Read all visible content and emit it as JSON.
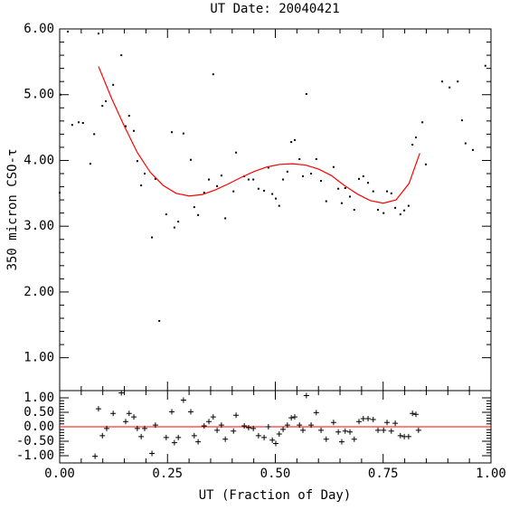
{
  "chart_data": [
    {
      "type": "scatter",
      "title": "UT Date: 20040421",
      "y_label": "350 micron CSO-τ",
      "color": "#000000",
      "x": [
        0.0,
        0.002,
        0.019,
        0.029,
        0.044,
        0.054,
        0.071,
        0.08,
        0.09,
        0.099,
        0.107,
        0.124,
        0.143,
        0.153,
        0.161,
        0.172,
        0.18,
        0.189,
        0.197,
        0.214,
        0.222,
        0.231,
        0.247,
        0.26,
        0.266,
        0.275,
        0.287,
        0.304,
        0.312,
        0.321,
        0.335,
        0.346,
        0.356,
        0.365,
        0.375,
        0.384,
        0.403,
        0.409,
        0.428,
        0.438,
        0.449,
        0.461,
        0.474,
        0.484,
        0.493,
        0.501,
        0.509,
        0.518,
        0.528,
        0.537,
        0.545,
        0.556,
        0.564,
        0.572,
        0.583,
        0.595,
        0.606,
        0.618,
        0.635,
        0.646,
        0.654,
        0.662,
        0.673,
        0.683,
        0.694,
        0.704,
        0.715,
        0.727,
        0.738,
        0.751,
        0.759,
        0.769,
        0.778,
        0.79,
        0.799,
        0.809,
        0.818,
        0.826,
        0.841,
        0.849,
        0.887,
        0.904,
        0.923,
        0.933,
        0.941,
        0.958,
        0.987
      ],
      "values": [
        3.51,
        5.0,
        5.96,
        4.54,
        4.58,
        4.57,
        3.95,
        4.4,
        5.93,
        4.83,
        4.9,
        5.15,
        5.6,
        4.52,
        4.68,
        4.45,
        3.99,
        3.62,
        3.8,
        2.83,
        3.72,
        1.56,
        3.18,
        4.43,
        2.98,
        3.07,
        4.41,
        4.01,
        3.29,
        3.17,
        3.51,
        3.71,
        5.31,
        3.61,
        3.77,
        3.12,
        3.53,
        4.12,
        3.76,
        3.71,
        3.71,
        3.57,
        3.54,
        3.89,
        3.49,
        3.42,
        3.31,
        3.71,
        3.83,
        4.28,
        4.31,
        4.02,
        3.76,
        5.01,
        3.8,
        4.02,
        3.69,
        3.38,
        3.9,
        3.57,
        3.35,
        3.58,
        3.45,
        3.25,
        3.72,
        3.76,
        3.66,
        3.53,
        3.25,
        3.2,
        3.53,
        3.5,
        3.28,
        3.18,
        3.24,
        3.31,
        4.24,
        4.35,
        4.58,
        3.94,
        5.2,
        5.11,
        5.2,
        4.61,
        4.26,
        4.16,
        5.44
      ],
      "fit": {
        "color": "#ff0000",
        "x": [
          0.09,
          0.12,
          0.15,
          0.18,
          0.21,
          0.24,
          0.27,
          0.3,
          0.33,
          0.36,
          0.39,
          0.42,
          0.45,
          0.48,
          0.51,
          0.54,
          0.57,
          0.6,
          0.63,
          0.66,
          0.69,
          0.72,
          0.75,
          0.78,
          0.81,
          0.835
        ],
        "values": [
          5.43,
          4.95,
          4.52,
          4.12,
          3.82,
          3.62,
          3.5,
          3.46,
          3.48,
          3.55,
          3.64,
          3.74,
          3.83,
          3.9,
          3.94,
          3.95,
          3.93,
          3.87,
          3.77,
          3.62,
          3.49,
          3.39,
          3.35,
          3.4,
          3.65,
          4.11
        ]
      },
      "xlim": [
        0,
        1
      ],
      "ylim": [
        0.5,
        6.0
      ],
      "yticks": [
        {
          "value": 1,
          "label": "1.00"
        },
        {
          "value": 2,
          "label": "2.00"
        },
        {
          "value": 3,
          "label": "3.00"
        },
        {
          "value": 4,
          "label": "4.00"
        },
        {
          "value": 5,
          "label": "5.00"
        },
        {
          "value": 6,
          "label": "6.00"
        }
      ]
    },
    {
      "type": "residual",
      "x_label": "UT (Fraction of Day)",
      "color": "#000000",
      "x": [
        0.082,
        0.09,
        0.099,
        0.109,
        0.124,
        0.143,
        0.153,
        0.161,
        0.172,
        0.18,
        0.189,
        0.197,
        0.214,
        0.222,
        0.247,
        0.26,
        0.266,
        0.275,
        0.287,
        0.304,
        0.312,
        0.321,
        0.335,
        0.346,
        0.356,
        0.365,
        0.375,
        0.384,
        0.403,
        0.409,
        0.428,
        0.438,
        0.449,
        0.461,
        0.474,
        0.484,
        0.493,
        0.501,
        0.509,
        0.518,
        0.528,
        0.537,
        0.545,
        0.556,
        0.564,
        0.572,
        0.583,
        0.595,
        0.606,
        0.618,
        0.635,
        0.646,
        0.654,
        0.662,
        0.673,
        0.683,
        0.694,
        0.704,
        0.715,
        0.727,
        0.738,
        0.751,
        0.759,
        0.769,
        0.778,
        0.79,
        0.799,
        0.809,
        0.818,
        0.826,
        0.832
      ],
      "values": [
        -1.02,
        0.62,
        -0.31,
        -0.06,
        0.46,
        1.17,
        0.18,
        0.46,
        0.34,
        -0.06,
        -0.34,
        -0.06,
        -0.92,
        0.06,
        -0.37,
        0.52,
        -0.55,
        -0.37,
        0.92,
        0.52,
        -0.31,
        -0.52,
        0.03,
        0.18,
        0.34,
        -0.12,
        0.06,
        -0.43,
        -0.15,
        0.4,
        0.03,
        -0.03,
        -0.06,
        -0.31,
        -0.37,
        0.0,
        -0.46,
        -0.58,
        -0.25,
        -0.09,
        0.06,
        0.31,
        0.34,
        0.06,
        -0.12,
        1.08,
        0.06,
        0.49,
        -0.12,
        -0.43,
        0.15,
        -0.18,
        -0.52,
        -0.15,
        -0.18,
        -0.43,
        0.18,
        0.28,
        0.28,
        0.25,
        -0.12,
        -0.12,
        0.15,
        -0.15,
        0.12,
        -0.31,
        -0.34,
        -0.34,
        0.46,
        0.43,
        -0.12
      ],
      "hline": 0,
      "hline_color": "#ff0000",
      "xlim": [
        0,
        1
      ],
      "ylim": [
        -1.25,
        1.25
      ],
      "xticks": [
        {
          "value": 0,
          "label": "0.00"
        },
        {
          "value": 0.25,
          "label": "0.25"
        },
        {
          "value": 0.5,
          "label": "0.50"
        },
        {
          "value": 0.75,
          "label": "0.75"
        },
        {
          "value": 1,
          "label": "1.00"
        }
      ],
      "yticks": [
        {
          "value": -1,
          "label": "-1.00"
        },
        {
          "value": -0.5,
          "label": "-0.50"
        },
        {
          "value": 0,
          "label": "0.00"
        },
        {
          "value": 0.5,
          "label": "0.50"
        },
        {
          "value": 1,
          "label": "1.00"
        }
      ]
    }
  ]
}
